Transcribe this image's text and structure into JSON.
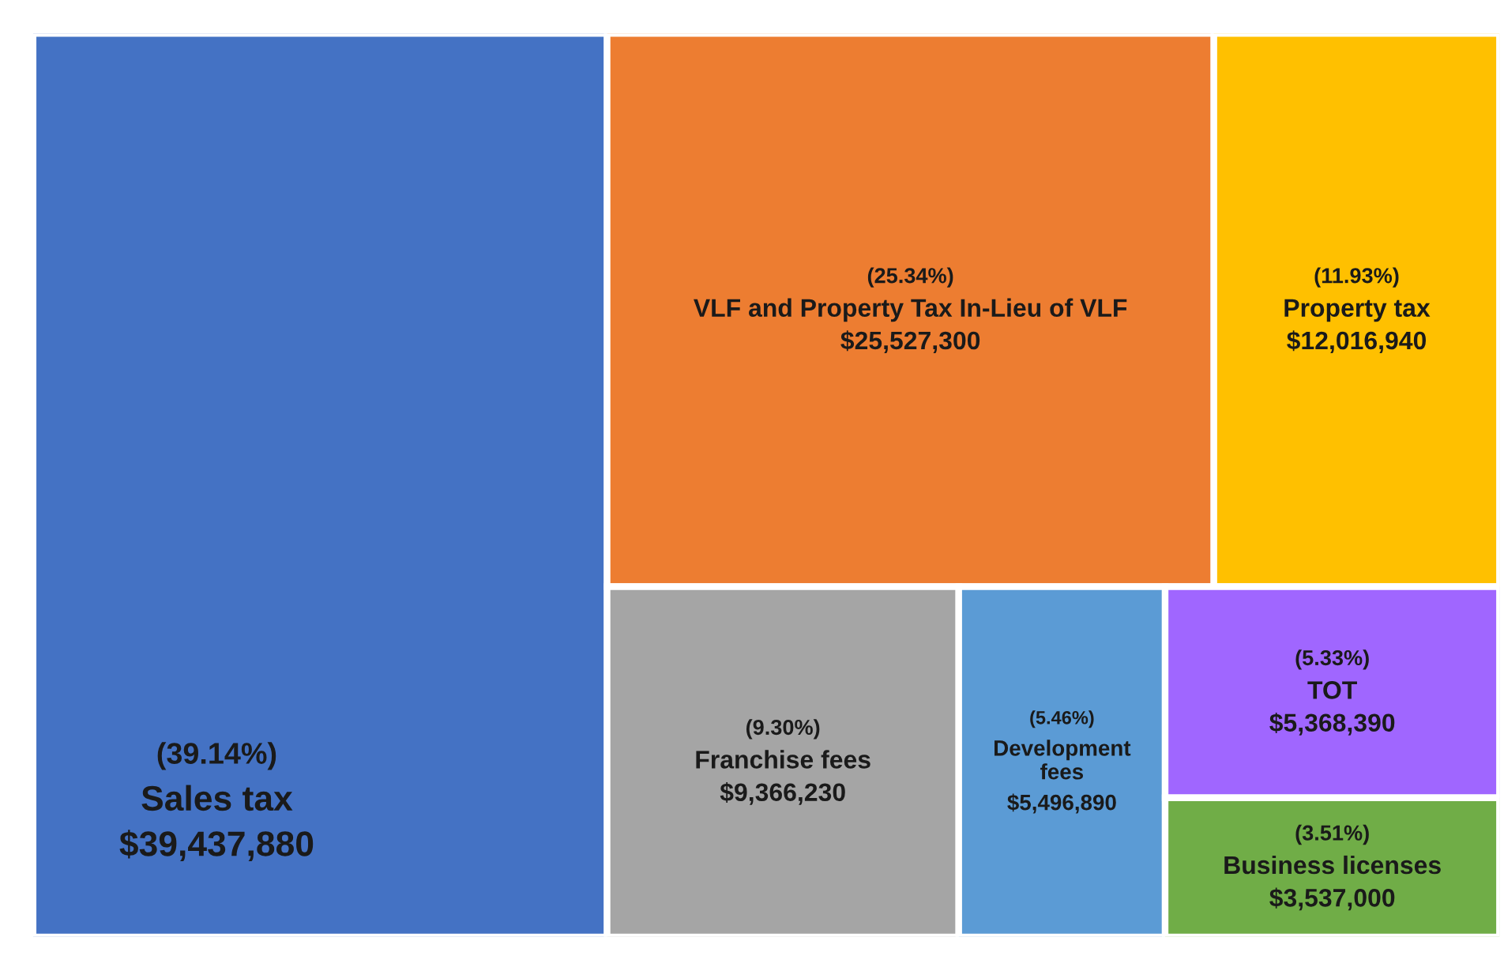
{
  "chart_data": {
    "type": "other",
    "categories": [
      "Sales tax",
      "VLF and Property Tax In-Lieu of VLF",
      "Property tax",
      "Franchise fees",
      "Development\nfees",
      "TOT",
      "Business licenses"
    ],
    "values": [
      39437880,
      25527300,
      12016940,
      9366230,
      5496890,
      5368390,
      3537000
    ],
    "value_labels": [
      "$39,437,880",
      "$25,527,300",
      "$12,016,940",
      "$9,366,230",
      "$5,496,890",
      "$5,368,390",
      "$3,537,000"
    ],
    "annotations": [
      "(39.14%)",
      "(25.34%)",
      "(11.93%)",
      "(9.30%)",
      "(5.46%)",
      "(5.33%)",
      "(3.51%)"
    ],
    "colors": [
      "#4472c4",
      "#ed7d31",
      "#ffc000",
      "#a5a5a5",
      "#5b9bd5",
      "#a066ff",
      "#70ad47"
    ]
  }
}
